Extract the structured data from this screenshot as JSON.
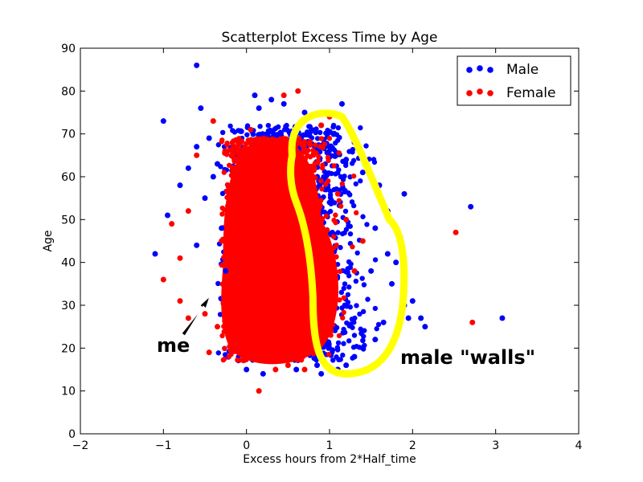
{
  "chart_data": {
    "type": "scatter",
    "title": "Scatterplot Excess Time by Age",
    "xlabel": "Excess hours from 2*Half_time",
    "ylabel": "Age",
    "xlim": [
      -2,
      4
    ],
    "ylim": [
      0,
      90
    ],
    "xticks": [
      -2,
      -1,
      0,
      1,
      2,
      3,
      4
    ],
    "yticks": [
      0,
      10,
      20,
      30,
      40,
      50,
      60,
      70,
      80,
      90
    ],
    "xtick_labels": [
      "−2",
      "−1",
      "0",
      "1",
      "2",
      "3",
      "4"
    ],
    "ytick_labels": [
      "0",
      "10",
      "20",
      "30",
      "40",
      "50",
      "60",
      "70",
      "80",
      "90"
    ],
    "grid": false,
    "legend_position": "top-right",
    "series": [
      {
        "name": "Male",
        "color": "#0000ff",
        "points": [
          [
            -0.6,
            86
          ],
          [
            -1.0,
            73
          ],
          [
            -0.55,
            76
          ],
          [
            -1.1,
            42
          ],
          [
            -0.8,
            58
          ],
          [
            -0.95,
            51
          ],
          [
            -0.6,
            44
          ],
          [
            -0.5,
            55
          ],
          [
            -0.45,
            69
          ],
          [
            -0.4,
            60
          ],
          [
            -0.35,
            63
          ],
          [
            -0.6,
            67
          ],
          [
            -0.7,
            62
          ],
          [
            -0.3,
            48
          ],
          [
            -0.25,
            38
          ],
          [
            0.1,
            79
          ],
          [
            0.3,
            78
          ],
          [
            0.15,
            76
          ],
          [
            0.45,
            77
          ],
          [
            0.7,
            75
          ],
          [
            1.15,
            77
          ],
          [
            0.9,
            72
          ],
          [
            1.0,
            67
          ],
          [
            1.3,
            68
          ],
          [
            1.2,
            64
          ],
          [
            1.4,
            61
          ],
          [
            1.6,
            58
          ],
          [
            1.9,
            56
          ],
          [
            1.7,
            52
          ],
          [
            1.55,
            48
          ],
          [
            1.85,
            46
          ],
          [
            1.7,
            42
          ],
          [
            1.8,
            40
          ],
          [
            1.5,
            38
          ],
          [
            1.75,
            35
          ],
          [
            2.0,
            31
          ],
          [
            1.9,
            30
          ],
          [
            2.1,
            27
          ],
          [
            2.15,
            25
          ],
          [
            1.95,
            27
          ],
          [
            2.7,
            53
          ],
          [
            3.08,
            27
          ],
          [
            1.3,
            18
          ],
          [
            1.2,
            16
          ],
          [
            1.1,
            15
          ],
          [
            0.9,
            14
          ],
          [
            0.85,
            16
          ],
          [
            1.4,
            20
          ],
          [
            1.55,
            22
          ],
          [
            1.65,
            26
          ],
          [
            0.0,
            15
          ],
          [
            0.2,
            14
          ],
          [
            0.6,
            15
          ]
        ]
      },
      {
        "name": "Female",
        "color": "#ff0000",
        "points": [
          [
            0.62,
            80
          ],
          [
            0.45,
            79
          ],
          [
            -0.4,
            73
          ],
          [
            -0.6,
            65
          ],
          [
            -0.7,
            52
          ],
          [
            -0.9,
            49
          ],
          [
            -0.8,
            41
          ],
          [
            -1.0,
            36
          ],
          [
            -0.8,
            31
          ],
          [
            -0.5,
            28
          ],
          [
            -0.7,
            27
          ],
          [
            -0.45,
            19
          ],
          [
            0.15,
            10
          ],
          [
            0.35,
            15
          ],
          [
            0.7,
            15
          ],
          [
            0.5,
            16
          ],
          [
            1.0,
            74
          ],
          [
            0.9,
            72
          ],
          [
            0.05,
            71
          ],
          [
            -0.1,
            68
          ],
          [
            2.52,
            47
          ],
          [
            2.72,
            26
          ],
          [
            1.4,
            45
          ],
          [
            1.3,
            38
          ],
          [
            1.2,
            50
          ],
          [
            1.1,
            56
          ],
          [
            -0.3,
            45
          ],
          [
            -0.35,
            25
          ],
          [
            0.8,
            20
          ]
        ]
      }
    ],
    "annotations": [
      {
        "text": "me",
        "x": -0.62,
        "y": 20.5,
        "arrow_to": [
          -0.45,
          32
        ]
      },
      {
        "text": "male \"walls\"",
        "x": 1.05,
        "y": 17.5
      }
    ]
  }
}
